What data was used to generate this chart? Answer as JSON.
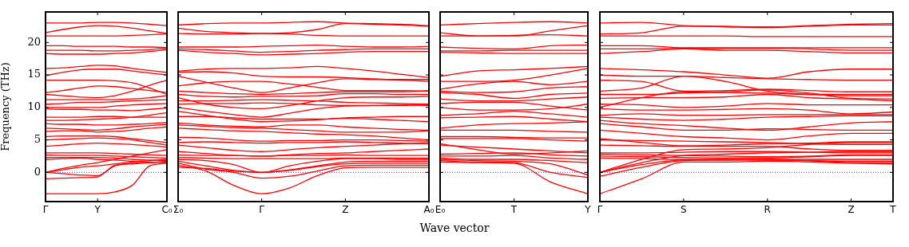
{
  "chart_data": [
    {
      "type": "line",
      "ylabel": "Frequency (THz)",
      "color": "#ff0000",
      "categories": [
        "Γ",
        null,
        null,
        "Y",
        null,
        null,
        null,
        "C₀"
      ],
      "ylim": [
        -4.5,
        24.7
      ],
      "yticks": [
        0,
        5,
        10,
        15,
        20
      ],
      "ref_lines": [
        {
          "axis": "y",
          "value": 0,
          "color": "#0000ff",
          "line_style": "dotted"
        }
      ],
      "series": [
        {
          "values": [
            23.0,
            23.0,
            23.0,
            23.1,
            23.1,
            23.0,
            22.8,
            22.6
          ]
        },
        {
          "values": [
            21.5,
            22.0,
            22.4,
            22.6,
            22.5,
            22.2,
            21.8,
            21.4
          ]
        },
        {
          "values": [
            21.0,
            21.0,
            21.0,
            21.0,
            21.0,
            21.1,
            21.2,
            21.3
          ]
        },
        {
          "values": [
            19.5,
            19.5,
            19.4,
            19.4,
            19.4,
            19.3,
            19.3,
            19.2
          ]
        },
        {
          "values": [
            18.8,
            18.8,
            18.8,
            18.7,
            18.7,
            18.8,
            18.9,
            19.1
          ]
        },
        {
          "values": [
            18.3,
            18.2,
            18.2,
            18.2,
            18.3,
            18.4,
            18.6,
            18.9
          ]
        },
        {
          "values": [
            16.0,
            16.1,
            16.3,
            16.5,
            16.4,
            16.0,
            15.7,
            15.4
          ]
        },
        {
          "values": [
            14.9,
            15.4,
            15.8,
            15.9,
            15.9,
            15.6,
            15.3,
            15.0
          ]
        },
        {
          "values": [
            14.2,
            14.2,
            14.2,
            14.2,
            14.1,
            13.8,
            13.0,
            12.0
          ]
        },
        {
          "values": [
            12.3,
            12.6,
            13.0,
            13.3,
            13.2,
            12.9,
            12.6,
            12.3
          ]
        },
        {
          "values": [
            12.0,
            11.8,
            11.6,
            11.5,
            11.8,
            12.5,
            13.4,
            14.2
          ]
        },
        {
          "values": [
            11.2,
            11.2,
            11.2,
            11.2,
            11.2,
            11.3,
            11.5,
            11.8
          ]
        },
        {
          "values": [
            10.5,
            10.6,
            10.8,
            10.8,
            10.9,
            11.0,
            11.1,
            11.2
          ]
        },
        {
          "values": [
            10.0,
            10.0,
            10.0,
            10.0,
            10.2,
            10.4,
            10.5,
            10.6
          ]
        },
        {
          "values": [
            9.8,
            9.7,
            9.7,
            9.6,
            9.6,
            9.5,
            9.7,
            9.9
          ]
        },
        {
          "values": [
            8.5,
            8.5,
            8.5,
            8.6,
            8.6,
            8.5,
            8.5,
            8.5
          ]
        },
        {
          "values": [
            8.0,
            8.0,
            8.1,
            8.2,
            8.3,
            8.5,
            8.8,
            9.2
          ]
        },
        {
          "values": [
            7.5,
            7.4,
            7.4,
            7.3,
            7.3,
            7.4,
            7.5,
            7.7
          ]
        },
        {
          "values": [
            6.8,
            6.7,
            6.6,
            6.5,
            6.7,
            7.0,
            7.2,
            7.4
          ]
        },
        {
          "values": [
            6.3,
            6.4,
            6.4,
            6.2,
            6.3,
            6.5,
            6.8,
            7.0
          ]
        },
        {
          "values": [
            5.5,
            5.6,
            5.6,
            5.6,
            5.5,
            5.2,
            4.9,
            4.6
          ]
        },
        {
          "values": [
            5.0,
            5.1,
            5.2,
            5.3,
            5.2,
            5.0,
            4.6,
            4.2
          ]
        },
        {
          "values": [
            4.0,
            4.2,
            4.4,
            4.5,
            4.4,
            4.3,
            4.1,
            3.9
          ]
        },
        {
          "values": [
            3.0,
            3.0,
            3.0,
            3.0,
            2.9,
            2.8,
            2.7,
            2.6
          ]
        },
        {
          "values": [
            2.7,
            2.6,
            2.6,
            2.6,
            2.5,
            2.4,
            2.3,
            2.2
          ]
        },
        {
          "values": [
            2.3,
            2.3,
            2.3,
            2.3,
            2.2,
            2.0,
            1.9,
            1.8
          ]
        },
        {
          "values": [
            2.0,
            2.1,
            2.2,
            2.0,
            1.9,
            1.7,
            1.6,
            1.5
          ]
        },
        {
          "values": [
            0,
            0.6,
            1.1,
            1.5,
            2.0,
            2.5,
            3.0,
            3.5
          ]
        },
        {
          "values": [
            0,
            0.4,
            0.8,
            1.0,
            1.3,
            1.6,
            1.8,
            2.0
          ]
        },
        {
          "values": [
            0,
            -0.2,
            -0.4,
            -0.5,
            1.0,
            1.4,
            1.5,
            1.6
          ]
        },
        {
          "values": [
            -1.0,
            -0.9,
            -0.8,
            -0.7,
            1.1,
            1.3,
            1.5,
            1.7
          ]
        },
        {
          "values": [
            -3.3,
            -3.3,
            -3.3,
            -3.3,
            -3.0,
            -2.0,
            1.0,
            1.4
          ]
        }
      ]
    },
    {
      "type": "line",
      "xlabel": "Wave vector",
      "tick_labels": "x",
      "color": "#ff0000",
      "categories": [
        "Σ₀",
        null,
        null,
        "Γ",
        null,
        null,
        "Z",
        null,
        null,
        "A₀"
      ],
      "ylim": [
        -4.5,
        24.7
      ],
      "yticks": [
        0,
        5,
        10,
        15,
        20
      ],
      "ref_lines": [
        {
          "axis": "y",
          "value": 0,
          "color": "#0000ff",
          "line_style": "dotted"
        }
      ],
      "series": [
        {
          "values": [
            22.7,
            22.9,
            23.0,
            23.0,
            23.1,
            23.2,
            23.0,
            22.9,
            22.8,
            22.6
          ]
        },
        {
          "values": [
            22.2,
            21.7,
            21.5,
            21.4,
            21.5,
            22.0,
            22.9,
            22.8,
            22.7,
            22.5
          ]
        },
        {
          "values": [
            21.4,
            21.3,
            21.3,
            21.4,
            21.3,
            21.1,
            21.0,
            21.0,
            21.0,
            21.0
          ]
        },
        {
          "values": [
            19.3,
            19.3,
            19.3,
            19.4,
            19.5,
            19.6,
            19.4,
            19.3,
            19.3,
            19.4
          ]
        },
        {
          "values": [
            19.0,
            18.9,
            18.7,
            18.5,
            18.6,
            18.8,
            18.9,
            19.0,
            19.0,
            19.0
          ]
        },
        {
          "values": [
            18.8,
            18.5,
            18.3,
            18.1,
            18.2,
            18.3,
            18.5,
            18.6,
            18.6,
            18.6
          ]
        },
        {
          "values": [
            15.6,
            15.9,
            16.0,
            16.0,
            16.1,
            16.3,
            16.0,
            15.6,
            15.1,
            14.6
          ]
        },
        {
          "values": [
            15.4,
            15.5,
            15.3,
            14.8,
            14.7,
            14.7,
            14.6,
            14.4,
            14.2,
            14.0
          ]
        },
        {
          "values": [
            14.8,
            13.9,
            13.0,
            12.3,
            13.0,
            13.8,
            14.4,
            14.3,
            14.3,
            14.3
          ]
        },
        {
          "values": [
            13.3,
            13.8,
            14.0,
            14.0,
            13.6,
            13.1,
            12.6,
            12.6,
            12.6,
            12.5
          ]
        },
        {
          "values": [
            12.5,
            12.3,
            12.1,
            12.0,
            12.1,
            12.3,
            12.4,
            12.4,
            12.4,
            12.6
          ]
        },
        {
          "values": [
            12.0,
            11.7,
            11.6,
            11.7,
            11.7,
            11.8,
            12.1,
            12.1,
            12.0,
            12.0
          ]
        },
        {
          "values": [
            11.5,
            10.5,
            10.0,
            9.8,
            10.3,
            11.0,
            11.5,
            11.6,
            11.6,
            11.7
          ]
        },
        {
          "values": [
            11.0,
            11.0,
            11.1,
            11.2,
            11.1,
            11.0,
            10.8,
            10.7,
            10.6,
            10.5
          ]
        },
        {
          "values": [
            10.5,
            10.6,
            10.6,
            10.7,
            10.6,
            10.4,
            10.3,
            10.3,
            10.3,
            10.4
          ]
        },
        {
          "values": [
            10.0,
            9.4,
            8.9,
            8.5,
            9.1,
            9.8,
            10.2,
            10.3,
            10.4,
            10.3
          ]
        },
        {
          "values": [
            9.4,
            8.8,
            8.2,
            7.8,
            7.9,
            8.1,
            8.4,
            8.5,
            8.6,
            8.6
          ]
        },
        {
          "values": [
            8.6,
            8.6,
            8.4,
            8.2,
            8.2,
            8.2,
            8.3,
            8.2,
            8.0,
            7.8
          ]
        },
        {
          "values": [
            7.6,
            7.3,
            7.1,
            7.0,
            7.3,
            7.3,
            7.0,
            6.8,
            6.6,
            6.5
          ]
        },
        {
          "values": [
            7.3,
            7.1,
            6.9,
            6.8,
            6.6,
            6.4,
            6.2,
            6.2,
            6.2,
            6.4
          ]
        },
        {
          "values": [
            6.8,
            6.6,
            6.4,
            6.3,
            6.1,
            5.9,
            5.8,
            5.6,
            5.3,
            5.0
          ]
        },
        {
          "values": [
            5.4,
            5.3,
            5.0,
            4.8,
            4.9,
            4.9,
            5.0,
            5.0,
            4.9,
            4.8
          ]
        },
        {
          "values": [
            4.6,
            4.7,
            4.6,
            4.5,
            4.6,
            4.6,
            4.7,
            4.6,
            4.5,
            4.4
          ]
        },
        {
          "values": [
            4.2,
            3.8,
            3.4,
            3.2,
            3.5,
            3.8,
            4.0,
            4.2,
            4.4,
            4.6
          ]
        },
        {
          "values": [
            3.2,
            2.9,
            2.6,
            2.5,
            2.7,
            2.9,
            3.0,
            3.2,
            3.4,
            3.6
          ]
        },
        {
          "values": [
            2.7,
            2.6,
            2.6,
            2.5,
            2.6,
            2.6,
            2.7,
            2.6,
            2.6,
            2.6
          ]
        },
        {
          "values": [
            2.3,
            2.2,
            2.1,
            2.1,
            2.1,
            2.1,
            2.2,
            2.2,
            2.2,
            2.2
          ]
        },
        {
          "values": [
            2.0,
            1.8,
            1.2,
            0,
            1.0,
            1.7,
            2.1,
            2.1,
            2.0,
            2.0
          ]
        },
        {
          "values": [
            1.7,
            1.0,
            0.3,
            0,
            0.4,
            1.0,
            1.6,
            1.7,
            1.7,
            1.7
          ]
        },
        {
          "values": [
            1.4,
            0.5,
            0,
            -0.9,
            -0.6,
            0.2,
            1.0,
            1.1,
            1.1,
            1.1
          ]
        },
        {
          "values": [
            1.1,
            0.2,
            -2.0,
            -3.3,
            -2.4,
            -0.5,
            0.7,
            0.8,
            0.8,
            0.8
          ]
        },
        {
          "values": [
            0.8,
            0.6,
            0.2,
            0,
            0.3,
            0.9,
            1.3,
            1.4,
            1.4,
            1.4
          ]
        }
      ]
    },
    {
      "type": "line",
      "tick_labels": "x",
      "color": "#ff0000",
      "categories": [
        "E₀",
        null,
        "T",
        null,
        "Y"
      ],
      "ylim": [
        -4.5,
        24.7
      ],
      "yticks": [
        0,
        5,
        10,
        15,
        20
      ],
      "ref_lines": [
        {
          "axis": "y",
          "value": 0,
          "color": "#0000ff",
          "line_style": "dotted"
        }
      ],
      "series": [
        {
          "values": [
            22.7,
            22.9,
            23.1,
            23.2,
            23.0
          ]
        },
        {
          "values": [
            21.5,
            21.0,
            21.0,
            21.8,
            22.6
          ]
        },
        {
          "values": [
            21.0,
            21.0,
            21.1,
            21.2,
            21.0
          ]
        },
        {
          "values": [
            19.3,
            19.1,
            19.0,
            19.5,
            19.6
          ]
        },
        {
          "values": [
            18.7,
            18.7,
            18.8,
            18.8,
            18.8
          ]
        },
        {
          "values": [
            18.5,
            18.4,
            18.3,
            18.3,
            18.3
          ]
        },
        {
          "values": [
            14.8,
            15.6,
            15.8,
            16.0,
            16.3
          ]
        },
        {
          "values": [
            14.0,
            14.0,
            14.2,
            15.0,
            16.0
          ]
        },
        {
          "values": [
            12.8,
            13.6,
            14.0,
            13.5,
            14.0
          ]
        },
        {
          "values": [
            12.5,
            12.3,
            12.4,
            13.0,
            13.2
          ]
        },
        {
          "values": [
            12.3,
            12.0,
            11.4,
            12.0,
            12.2
          ]
        },
        {
          "values": [
            11.3,
            11.0,
            11.0,
            11.3,
            11.6
          ]
        },
        {
          "values": [
            10.6,
            10.8,
            10.8,
            10.2,
            9.6
          ]
        },
        {
          "values": [
            10.0,
            9.6,
            9.6,
            9.8,
            10.5
          ]
        },
        {
          "values": [
            8.8,
            9.0,
            9.4,
            9.0,
            8.5
          ]
        },
        {
          "values": [
            8.4,
            8.5,
            8.6,
            8.2,
            7.8
          ]
        },
        {
          "values": [
            6.8,
            7.3,
            7.5,
            7.6,
            7.8
          ]
        },
        {
          "values": [
            6.5,
            6.5,
            6.5,
            6.3,
            6.2
          ]
        },
        {
          "values": [
            5.5,
            5.5,
            5.4,
            5.3,
            5.3
          ]
        },
        {
          "values": [
            5.2,
            5.2,
            5.2,
            5.0,
            4.8
          ]
        },
        {
          "values": [
            4.4,
            3.5,
            2.8,
            3.0,
            3.3
          ]
        },
        {
          "values": [
            4.2,
            3.9,
            3.6,
            3.3,
            3.0
          ]
        },
        {
          "values": [
            2.8,
            2.9,
            3.0,
            2.7,
            2.5
          ]
        },
        {
          "values": [
            2.5,
            2.5,
            2.6,
            2.2,
            2.0
          ]
        },
        {
          "values": [
            2.2,
            2.0,
            2.0,
            1.8,
            1.5
          ]
        },
        {
          "values": [
            2.0,
            1.8,
            1.7,
            1.3,
            -0.4
          ]
        },
        {
          "values": [
            1.8,
            1.6,
            1.5,
            0,
            -0.8
          ]
        },
        {
          "values": [
            1.6,
            1.5,
            1.4,
            -1.5,
            -3.3
          ]
        }
      ]
    },
    {
      "type": "line",
      "tick_labels": "x",
      "color": "#ff0000",
      "categories": [
        "Γ",
        null,
        "S",
        null,
        "R",
        null,
        "Z",
        "T"
      ],
      "ylim": [
        -4.5,
        24.7
      ],
      "yticks": [
        0,
        5,
        10,
        15,
        20
      ],
      "ref_lines": [
        {
          "axis": "y",
          "value": 0,
          "color": "#0000ff",
          "line_style": "dotted"
        }
      ],
      "series": [
        {
          "values": [
            23.0,
            23.1,
            22.6,
            22.5,
            22.4,
            22.6,
            22.8,
            22.9
          ]
        },
        {
          "values": [
            21.3,
            21.5,
            22.5,
            22.4,
            22.3,
            22.5,
            22.7,
            22.7
          ]
        },
        {
          "values": [
            21.0,
            21.0,
            21.0,
            21.0,
            20.9,
            20.9,
            20.9,
            20.9
          ]
        },
        {
          "values": [
            19.5,
            19.5,
            19.2,
            19.2,
            19.2,
            19.2,
            19.2,
            19.2
          ]
        },
        {
          "values": [
            19.0,
            19.0,
            19.1,
            19.1,
            19.1,
            19.0,
            18.8,
            18.8
          ]
        },
        {
          "values": [
            18.3,
            18.6,
            19.0,
            18.8,
            18.8,
            18.6,
            18.4,
            18.4
          ]
        },
        {
          "values": [
            16.0,
            15.8,
            15.5,
            15.0,
            14.5,
            15.5,
            15.9,
            15.9
          ]
        },
        {
          "values": [
            15.0,
            14.8,
            14.8,
            14.6,
            14.4,
            14.3,
            14.2,
            14.2
          ]
        },
        {
          "values": [
            14.2,
            14.0,
            12.5,
            12.6,
            12.8,
            12.6,
            12.4,
            12.4
          ]
        },
        {
          "values": [
            12.5,
            13.0,
            14.8,
            14.0,
            12.5,
            12.0,
            11.8,
            11.8
          ]
        },
        {
          "values": [
            12.0,
            12.0,
            12.2,
            12.4,
            12.7,
            12.2,
            11.4,
            11.3
          ]
        },
        {
          "values": [
            11.4,
            11.5,
            11.5,
            11.6,
            12.0,
            11.5,
            11.3,
            11.0
          ]
        },
        {
          "values": [
            10.0,
            11.5,
            12.4,
            12.3,
            12.2,
            12.0,
            12.0,
            12.0
          ]
        },
        {
          "values": [
            10.5,
            10.4,
            10.0,
            10.2,
            10.6,
            10.4,
            10.4,
            10.4
          ]
        },
        {
          "values": [
            9.8,
            9.6,
            9.6,
            9.7,
            9.8,
            9.6,
            9.0,
            9.3
          ]
        },
        {
          "values": [
            8.8,
            9.0,
            8.8,
            8.8,
            8.9,
            8.9,
            8.9,
            8.9
          ]
        },
        {
          "values": [
            8.5,
            8.2,
            8.0,
            8.2,
            8.5,
            8.6,
            8.7,
            8.7
          ]
        },
        {
          "values": [
            8.0,
            7.5,
            7.2,
            6.8,
            6.5,
            7.0,
            7.6,
            7.8
          ]
        },
        {
          "values": [
            7.5,
            7.0,
            6.5,
            6.5,
            6.7,
            6.6,
            6.5,
            6.5
          ]
        },
        {
          "values": [
            6.5,
            6.0,
            5.5,
            5.3,
            5.0,
            5.6,
            6.0,
            6.0
          ]
        },
        {
          "values": [
            5.2,
            4.6,
            4.1,
            4.2,
            4.4,
            4.5,
            4.7,
            4.7
          ]
        },
        {
          "values": [
            5.0,
            4.9,
            4.8,
            4.7,
            4.6,
            4.4,
            4.3,
            4.3
          ]
        },
        {
          "values": [
            4.2,
            4.1,
            4.0,
            4.0,
            4.0,
            3.6,
            3.4,
            3.4
          ]
        },
        {
          "values": [
            3.0,
            3.0,
            3.1,
            3.2,
            3.2,
            3.1,
            3.0,
            3.0
          ]
        },
        {
          "values": [
            2.8,
            2.7,
            2.6,
            2.5,
            2.4,
            2.5,
            2.7,
            2.7
          ]
        },
        {
          "values": [
            2.5,
            2.4,
            2.3,
            2.2,
            2.2,
            2.4,
            2.6,
            2.6
          ]
        },
        {
          "values": [
            2.2,
            2.1,
            2.0,
            2.0,
            1.9,
            1.8,
            1.5,
            1.5
          ]
        },
        {
          "values": [
            0,
            2.0,
            3.5,
            3.6,
            3.8,
            4.3,
            4.6,
            4.6
          ]
        },
        {
          "values": [
            0,
            1.5,
            2.6,
            2.8,
            3.0,
            3.1,
            3.2,
            3.2
          ]
        },
        {
          "values": [
            0,
            1.2,
            1.9,
            1.9,
            1.9,
            1.8,
            1.7,
            1.7
          ]
        },
        {
          "values": [
            -0.6,
            0.8,
            1.8,
            1.9,
            2.0,
            2.0,
            2.0,
            2.0
          ]
        },
        {
          "values": [
            -3.3,
            -1.0,
            1.6,
            1.6,
            1.7,
            1.6,
            1.4,
            1.3
          ]
        }
      ]
    }
  ]
}
